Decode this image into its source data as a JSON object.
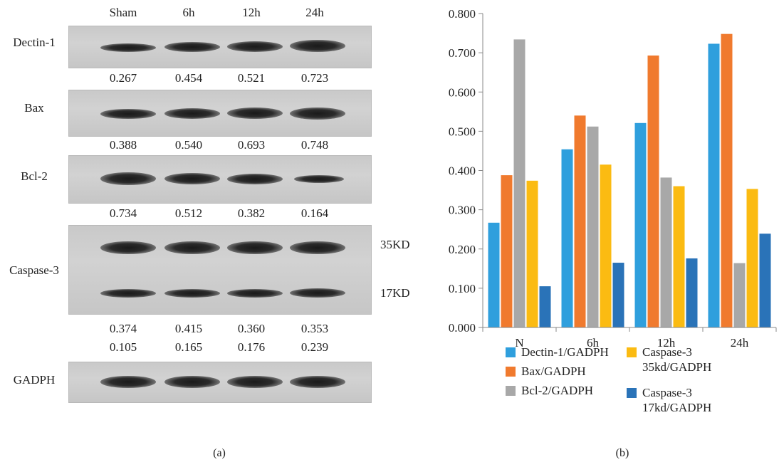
{
  "panel_a": {
    "lanes": [
      "Sham",
      "6h",
      "12h",
      "24h"
    ],
    "rows": [
      {
        "label": "Dectin-1",
        "quant": [
          "0.267",
          "0.454",
          "0.521",
          "0.723"
        ]
      },
      {
        "label": "Bax",
        "quant": [
          "0.388",
          "0.540",
          "0.693",
          "0.748"
        ]
      },
      {
        "label": "Bcl-2",
        "quant": [
          "0.734",
          "0.512",
          "0.382",
          "0.164"
        ]
      },
      {
        "label": "Caspase-3",
        "quant_35": [
          "0.374",
          "0.415",
          "0.360",
          "0.353"
        ],
        "quant_17": [
          "0.105",
          "0.165",
          "0.176",
          "0.239"
        ],
        "kd_upper": "35KD",
        "kd_lower": "17KD"
      },
      {
        "label": "GADPH"
      }
    ],
    "caption": "(a)"
  },
  "panel_b_caption": "(b)",
  "chart_data": {
    "type": "bar",
    "categories": [
      "N",
      "6h",
      "12h",
      "24h"
    ],
    "series": [
      {
        "name": "Dectin-1/GADPH",
        "color": "#2f9fdd",
        "values": [
          0.267,
          0.454,
          0.521,
          0.723
        ]
      },
      {
        "name": "Bax/GADPH",
        "color": "#f07a2e",
        "values": [
          0.388,
          0.54,
          0.693,
          0.748
        ]
      },
      {
        "name": "Bcl-2/GADPH",
        "color": "#a8a8a8",
        "values": [
          0.734,
          0.512,
          0.382,
          0.164
        ]
      },
      {
        "name": "Caspase-3\n35kd/GADPH",
        "color": "#fbbb12",
        "values": [
          0.374,
          0.415,
          0.36,
          0.353
        ]
      },
      {
        "name": "Caspase-3\n17kd/GADPH",
        "color": "#2a73b8",
        "values": [
          0.105,
          0.165,
          0.176,
          0.239
        ]
      }
    ],
    "yticks": [
      "0.000",
      "0.100",
      "0.200",
      "0.300",
      "0.400",
      "0.500",
      "0.600",
      "0.700",
      "0.800"
    ],
    "ylim": [
      0,
      0.8
    ],
    "grid": false,
    "legend": "bottom"
  }
}
